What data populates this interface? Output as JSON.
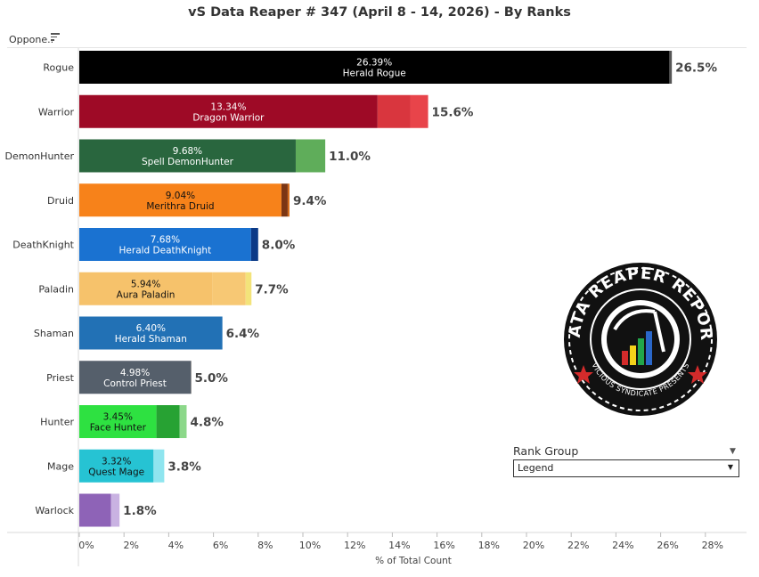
{
  "title": "vS Data Reaper # 347 (April 8 - 14, 2026) - By Ranks",
  "sort_label": "Oppone..",
  "rank_filter": {
    "label": "Rank Group",
    "value": "Legend"
  },
  "logo": {
    "text_top": "DATA REAPER REPORT",
    "text_bottom": "VICIOUS SYNDICATE PRESENTS"
  },
  "chart_data": {
    "type": "bar",
    "orientation": "horizontal",
    "stacked": true,
    "xlabel": "% of Total Count",
    "xlim": [
      0,
      28
    ],
    "x_ticks": [
      "0%",
      "2%",
      "4%",
      "6%",
      "8%",
      "10%",
      "12%",
      "14%",
      "16%",
      "18%",
      "20%",
      "22%",
      "24%",
      "26%",
      "28%"
    ],
    "categories": [
      "Rogue",
      "Warrior",
      "DemonHunter",
      "Druid",
      "DeathKnight",
      "Paladin",
      "Shaman",
      "Priest",
      "Hunter",
      "Mage",
      "Warlock"
    ],
    "totals": [
      "26.5%",
      "15.6%",
      "11.0%",
      "9.4%",
      "8.0%",
      "7.7%",
      "6.4%",
      "5.0%",
      "4.8%",
      "3.8%",
      "1.8%"
    ],
    "top_archetype": [
      {
        "pct": "26.39%",
        "name": "Herald Rogue"
      },
      {
        "pct": "13.34%",
        "name": "Dragon Warrior"
      },
      {
        "pct": "9.68%",
        "name": "Spell DemonHunter"
      },
      {
        "pct": "9.04%",
        "name": "Merithra Druid"
      },
      {
        "pct": "7.68%",
        "name": "Herald DeathKnight"
      },
      {
        "pct": "5.94%",
        "name": "Aura Paladin"
      },
      {
        "pct": "6.40%",
        "name": "Herald Shaman"
      },
      {
        "pct": "4.98%",
        "name": "Control Priest"
      },
      {
        "pct": "3.45%",
        "name": "Face Hunter"
      },
      {
        "pct": "3.32%",
        "name": "Quest Mage"
      },
      {
        "pct": "",
        "name": ""
      }
    ],
    "segments": [
      [
        {
          "value": 26.39,
          "color": "#000000"
        },
        {
          "value": 0.11,
          "color": "#555555"
        }
      ],
      [
        {
          "value": 13.34,
          "color": "#9e0a26"
        },
        {
          "value": 1.46,
          "color": "#d9363e"
        },
        {
          "value": 0.8,
          "color": "#e8444a"
        }
      ],
      [
        {
          "value": 9.68,
          "color": "#29663e"
        },
        {
          "value": 1.32,
          "color": "#5fad5a"
        }
      ],
      [
        {
          "value": 9.04,
          "color": "#f7821a"
        },
        {
          "value": 0.28,
          "color": "#7b3614"
        },
        {
          "value": 0.08,
          "color": "#d26a18"
        }
      ],
      [
        {
          "value": 7.68,
          "color": "#1a72d1"
        },
        {
          "value": 0.32,
          "color": "#0c3a87"
        }
      ],
      [
        {
          "value": 5.94,
          "color": "#f6c26b"
        },
        {
          "value": 1.5,
          "color": "#f7c874"
        },
        {
          "value": 0.26,
          "color": "#f3e37a"
        }
      ],
      [
        {
          "value": 6.4,
          "color": "#2271b5"
        }
      ],
      [
        {
          "value": 4.98,
          "color": "#555f6b"
        },
        {
          "value": 0.02,
          "color": "#2c2c2c"
        }
      ],
      [
        {
          "value": 3.45,
          "color": "#2ee141"
        },
        {
          "value": 1.04,
          "color": "#27a233"
        },
        {
          "value": 0.31,
          "color": "#8cd88a"
        }
      ],
      [
        {
          "value": 3.32,
          "color": "#26c3d3"
        },
        {
          "value": 0.48,
          "color": "#8fe5ef"
        }
      ],
      [
        {
          "value": 1.42,
          "color": "#8e63b7"
        },
        {
          "value": 0.38,
          "color": "#c9b2e2"
        }
      ]
    ],
    "label_dark": [
      false,
      false,
      false,
      true,
      false,
      true,
      false,
      false,
      true,
      true,
      false
    ]
  }
}
